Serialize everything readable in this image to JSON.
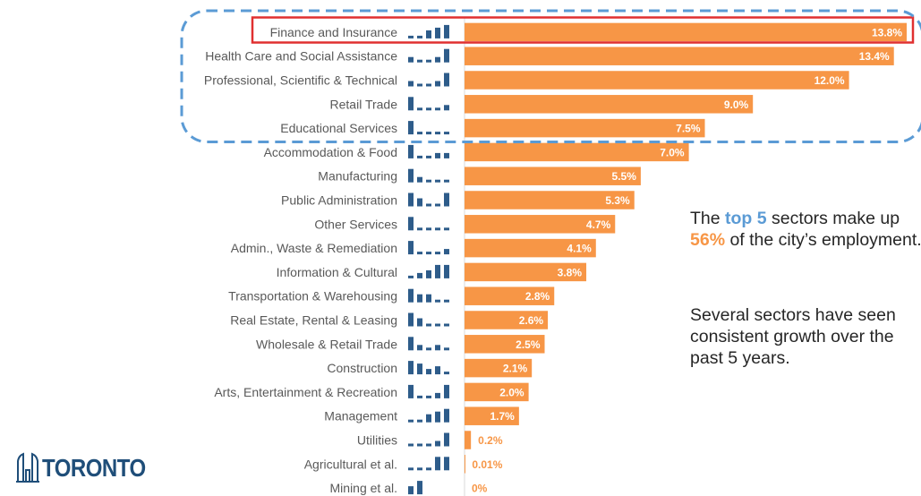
{
  "chart_data": {
    "type": "bar",
    "orientation": "horizontal",
    "categories": [
      "Finance and Insurance",
      "Health Care and Social Assistance",
      "Professional, Scientific & Technical",
      "Retail Trade",
      "Educational Services",
      "Accommodation & Food",
      "Manufacturing",
      "Public Administration",
      "Other Services",
      "Admin., Waste & Remediation",
      "Information & Cultural",
      "Transportation & Warehousing",
      "Real Estate, Rental & Leasing",
      "Wholesale & Retail Trade",
      "Construction",
      "Arts, Entertainment & Recreation",
      "Management",
      "Utilities",
      "Agricultural et al.",
      "Mining et al."
    ],
    "values": [
      13.8,
      13.4,
      12.0,
      9.0,
      7.5,
      7.0,
      5.5,
      5.3,
      4.7,
      4.1,
      3.8,
      2.8,
      2.6,
      2.5,
      2.1,
      2.0,
      1.7,
      0.2,
      0.01,
      0
    ],
    "value_labels": [
      "13.8%",
      "13.4%",
      "12.0%",
      "9.0%",
      "7.5%",
      "7.0%",
      "5.5%",
      "5.3%",
      "4.7%",
      "4.1%",
      "3.8%",
      "2.8%",
      "2.6%",
      "2.5%",
      "2.1%",
      "2.0%",
      "1.7%",
      "0.2%",
      "0.01%",
      "0%"
    ],
    "trend_sparklines": [
      [
        1,
        1,
        3,
        4,
        5
      ],
      [
        2,
        1,
        1,
        2,
        5
      ],
      [
        2,
        1,
        1,
        2,
        5
      ],
      [
        5,
        1,
        1,
        1,
        2
      ],
      [
        5,
        1,
        1,
        1,
        1
      ],
      [
        5,
        1,
        1,
        2,
        2
      ],
      [
        5,
        2,
        1,
        1,
        1
      ],
      [
        5,
        3,
        1,
        1,
        5
      ],
      [
        5,
        1,
        1,
        1,
        1
      ],
      [
        5,
        1,
        1,
        1,
        2
      ],
      [
        1,
        2,
        3,
        5,
        5
      ],
      [
        5,
        3,
        3,
        1,
        1
      ],
      [
        5,
        3,
        1,
        1,
        1
      ],
      [
        5,
        2,
        1,
        2,
        1
      ],
      [
        5,
        4,
        2,
        3,
        1
      ],
      [
        5,
        1,
        1,
        2,
        5
      ],
      [
        1,
        1,
        3,
        4,
        5
      ],
      [
        1,
        1,
        1,
        2,
        5
      ],
      [
        1,
        1,
        1,
        5,
        5
      ],
      [
        3,
        5
      ]
    ],
    "xlim": [
      0,
      14
    ],
    "bar_color": "#f79646",
    "sparkline_color": "#2e5c8a",
    "highlight_box_color": "#e03030",
    "top_group_outline_color": "#5b9bd5",
    "highlighted_category_index": 0,
    "top_group_count": 5
  },
  "annotation": {
    "p1_a": "The ",
    "p1_b": "top 5",
    "p1_c": " sectors make up ",
    "p1_d": "56%",
    "p1_e": " of the city’s employment.",
    "p2": "Several sectors have seen consistent growth over the past 5 years."
  },
  "logo": {
    "text": "TORONTO",
    "icon": "toronto-city-hall-icon"
  },
  "colors": {
    "highlight_blue": "#5b9bd5",
    "highlight_orange": "#f79646",
    "brand_navy": "#1f4e79"
  }
}
